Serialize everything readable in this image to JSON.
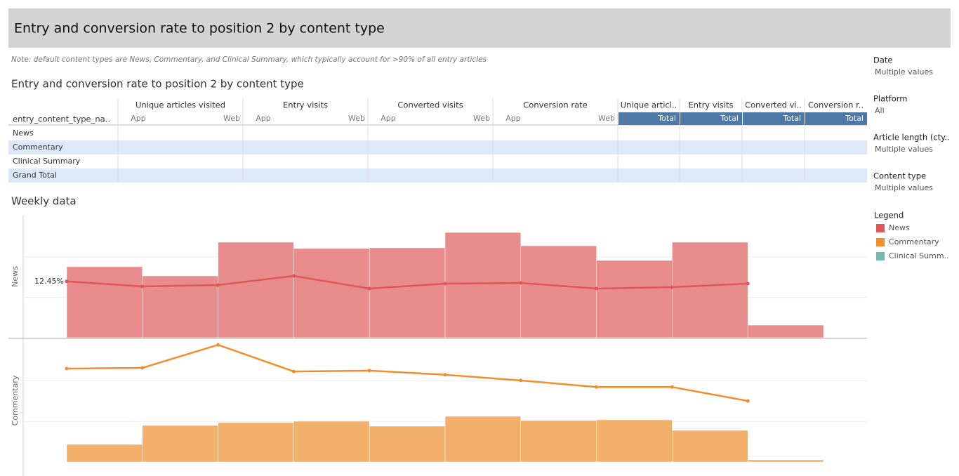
{
  "header": {
    "title": "Entry and conversion rate to position 2 by content type"
  },
  "note": "Note: default content types are News, Commentary, and Clinical Summary, which typically account for >90% of all entry articles",
  "table": {
    "title": "Entry and conversion rate to position 2 by content type",
    "row_header": "entry_content_type_na..",
    "groups": [
      "Unique articles visited",
      "Entry visits",
      "Converted visits",
      "Conversion rate",
      "Unique articl..",
      "Entry visits",
      "Converted vi..",
      "Conversion r.."
    ],
    "subheaders": [
      "App",
      "Web",
      "App",
      "Web",
      "App",
      "Web",
      "App",
      "Web",
      "Total",
      "Total",
      "Total",
      "Total"
    ],
    "rows": [
      "News",
      "Commentary",
      "Clinical Summary",
      "Grand Total"
    ]
  },
  "weekly_title": "Weekly data",
  "filters": [
    {
      "title": "Date",
      "value": "Multiple values"
    },
    {
      "title": "Platform",
      "value": "All"
    },
    {
      "title": "Article length (cty..",
      "value": "Multiple values"
    },
    {
      "title": "Content type",
      "value": "Multiple values"
    }
  ],
  "legend": {
    "title": "Legend",
    "items": [
      {
        "label": "News",
        "color": "#e15759"
      },
      {
        "label": "Commentary",
        "color": "#f28e2b"
      },
      {
        "label": "Clinical Summ..",
        "color": "#76b7b2"
      }
    ]
  },
  "chart_data": [
    {
      "type": "bar-line",
      "axis_title": "News",
      "ylim": [
        0,
        120000
      ],
      "y2lim": [
        0,
        27
      ],
      "series": [
        {
          "color": "#e88c8d",
          "values": [
            69700,
            60700,
            93800,
            87600,
            88300,
            103400,
            90300,
            75900,
            93800,
            12400
          ]
        },
        {
          "color": "#e15759",
          "axis": "y2",
          "values": [
            12.45,
            11.33,
            11.64,
            13.66,
            10.86,
            11.95,
            12.1,
            10.86,
            11.17,
            11.95
          ],
          "value_labels": [
            "12.45%",
            null,
            null,
            null,
            null,
            null,
            null,
            null,
            null,
            null
          ]
        }
      ]
    },
    {
      "type": "bar-line",
      "axis_title": "Commentary",
      "ylim": [
        0,
        140000
      ],
      "y2lim": [
        0,
        30
      ],
      "series": [
        {
          "color": "#f3b06b",
          "values": [
            20000,
            41600,
            44800,
            46400,
            40800,
            52000,
            47200,
            48000,
            36000,
            2400
          ]
        },
        {
          "color": "#f28e2b",
          "axis": "y2",
          "values": [
            22.8,
            22.97,
            28.6,
            22.1,
            22.3,
            21.3,
            19.9,
            18.3,
            18.3,
            14.9
          ]
        }
      ]
    }
  ]
}
